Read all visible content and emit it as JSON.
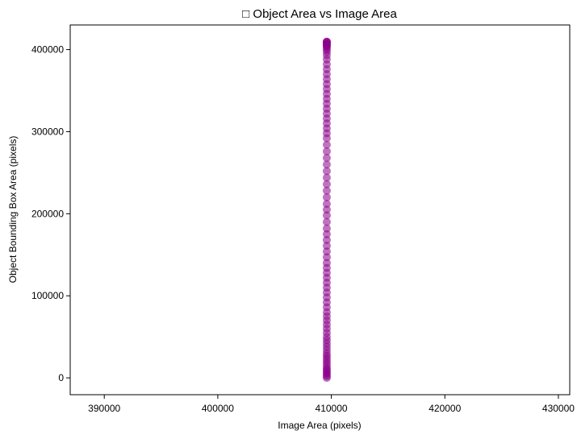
{
  "chart_data": {
    "type": "scatter",
    "title": "□ Object Area vs Image Area",
    "xlabel": "Image Area (pixels)",
    "ylabel": "Object Bounding Box Area (pixels)",
    "xlim": [
      387000,
      431000
    ],
    "ylim": [
      -20500,
      430000
    ],
    "xticks": [
      390000,
      400000,
      410000,
      420000,
      430000
    ],
    "yticks": [
      0,
      100000,
      200000,
      300000,
      400000
    ],
    "grid": false,
    "marker_color": "#8B008B",
    "series": [
      {
        "x": [
          409600,
          409600,
          409600,
          409600,
          409600,
          409600,
          409600,
          409600,
          409600,
          409600,
          409600,
          409600,
          409600,
          409600,
          409600,
          409600,
          409600,
          409600,
          409600,
          409600,
          409600,
          409600,
          409600,
          409600,
          409600,
          409600,
          409600,
          409600,
          409600,
          409600,
          409600,
          409600,
          409600,
          409600,
          409600,
          409600,
          409600,
          409600,
          409600,
          409600,
          409600,
          409600,
          409600,
          409600,
          409600,
          409600,
          409600,
          409600,
          409600,
          409600,
          409600,
          409600,
          409600,
          409600,
          409600,
          409600,
          409600,
          409600,
          409600,
          409600,
          409600,
          409600,
          409600,
          409600,
          409600,
          409600,
          409600,
          409600,
          409600,
          409600,
          409600,
          409600,
          409600,
          409600,
          409600,
          409600,
          409600,
          409600,
          409600,
          409600,
          409600,
          409600
        ],
        "y": [
          0,
          2000,
          4000,
          6000,
          8000,
          10000,
          12000,
          15000,
          18000,
          21000,
          24000,
          27000,
          30000,
          34000,
          38000,
          42000,
          46000,
          50000,
          55000,
          60000,
          65000,
          70000,
          75000,
          80000,
          86000,
          92000,
          98000,
          104000,
          110000,
          116000,
          122000,
          128000,
          134000,
          140000,
          147000,
          154000,
          161000,
          168000,
          175000,
          182000,
          190000,
          198000,
          205000,
          212000,
          220000,
          228000,
          236000,
          244000,
          252000,
          260000,
          268000,
          276000,
          284000,
          292000,
          298000,
          304000,
          310000,
          316000,
          322000,
          328000,
          334000,
          340000,
          346000,
          352000,
          358000,
          364000,
          370000,
          376000,
          382000,
          388000,
          393000,
          397000,
          400000,
          402000,
          404000,
          405000,
          406000,
          407000,
          408000,
          409000,
          409600,
          409600
        ]
      }
    ]
  }
}
